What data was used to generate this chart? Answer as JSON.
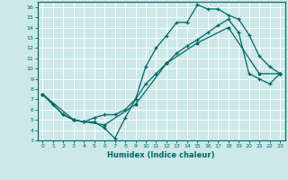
{
  "xlabel": "Humidex (Indice chaleur)",
  "bg_color": "#cce8e8",
  "line_color": "#006666",
  "grid_color": "#ffffff",
  "xlim": [
    -0.5,
    23.5
  ],
  "ylim": [
    3,
    16.5
  ],
  "line1_x": [
    0,
    1,
    2,
    3,
    4,
    5,
    6,
    7,
    8,
    9,
    10,
    11,
    12,
    13,
    14,
    15,
    16,
    17,
    18,
    19,
    20,
    21,
    22,
    23
  ],
  "line1_y": [
    7.5,
    6.5,
    5.5,
    5.0,
    4.8,
    4.8,
    4.2,
    3.2,
    5.2,
    7.0,
    10.2,
    12.0,
    13.2,
    14.5,
    14.5,
    16.2,
    15.8,
    15.8,
    15.2,
    14.8,
    13.3,
    11.2,
    10.2,
    9.5
  ],
  "line2_x": [
    0,
    1,
    2,
    3,
    4,
    5,
    6,
    7,
    8,
    9,
    10,
    11,
    12,
    13,
    14,
    15,
    16,
    17,
    18,
    19,
    20,
    21,
    22,
    23
  ],
  "line2_y": [
    7.5,
    6.5,
    5.5,
    5.0,
    4.8,
    5.2,
    5.5,
    5.5,
    6.0,
    7.0,
    8.5,
    9.5,
    10.5,
    11.5,
    12.2,
    12.8,
    13.5,
    14.2,
    14.8,
    13.5,
    9.5,
    9.0,
    8.5,
    9.5
  ],
  "line3_x": [
    0,
    3,
    6,
    9,
    12,
    15,
    18,
    21,
    23
  ],
  "line3_y": [
    7.5,
    5.0,
    4.5,
    6.5,
    10.5,
    12.5,
    14.0,
    9.5,
    9.5
  ],
  "xticks": [
    0,
    1,
    2,
    3,
    4,
    5,
    6,
    7,
    8,
    9,
    10,
    11,
    12,
    13,
    14,
    15,
    16,
    17,
    18,
    19,
    20,
    21,
    22,
    23
  ],
  "yticks": [
    3,
    4,
    5,
    6,
    7,
    8,
    9,
    10,
    11,
    12,
    13,
    14,
    15,
    16
  ]
}
